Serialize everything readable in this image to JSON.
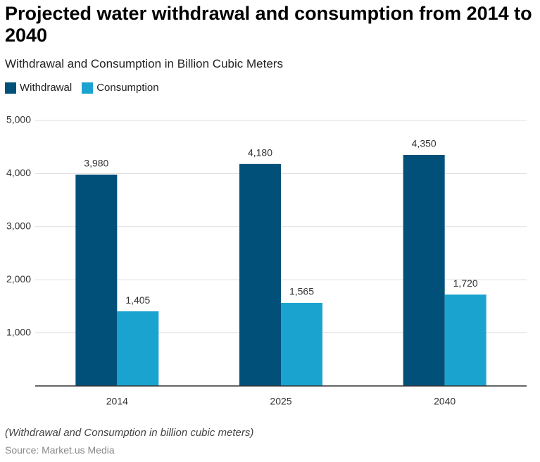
{
  "chart_data": {
    "type": "bar",
    "title": "Projected water withdrawal and consumption from 2014 to 2040",
    "subtitle": "Withdrawal and Consumption in Billion Cubic Meters",
    "categories": [
      "2014",
      "2025",
      "2040"
    ],
    "series": [
      {
        "name": "Withdrawal",
        "color": "#00507a",
        "values": [
          3980,
          4180,
          4350
        ],
        "value_labels": [
          "3,980",
          "4,180",
          "4,350"
        ]
      },
      {
        "name": "Consumption",
        "color": "#1ba3cf",
        "values": [
          1405,
          1565,
          1720
        ],
        "value_labels": [
          "1,405",
          "1,565",
          "1,720"
        ]
      }
    ],
    "ylim": [
      0,
      5000
    ],
    "yticks": [
      {
        "value": 1000,
        "label": "1,000"
      },
      {
        "value": 2000,
        "label": "2,000"
      },
      {
        "value": 3000,
        "label": "3,000"
      },
      {
        "value": 4000,
        "label": "4,000"
      },
      {
        "value": 5000,
        "label": "5,000"
      }
    ],
    "grid": true,
    "legend": "top-left",
    "note": "(Withdrawal and Consumption in billion cubic meters)",
    "source": "Source: Market.us Media"
  }
}
